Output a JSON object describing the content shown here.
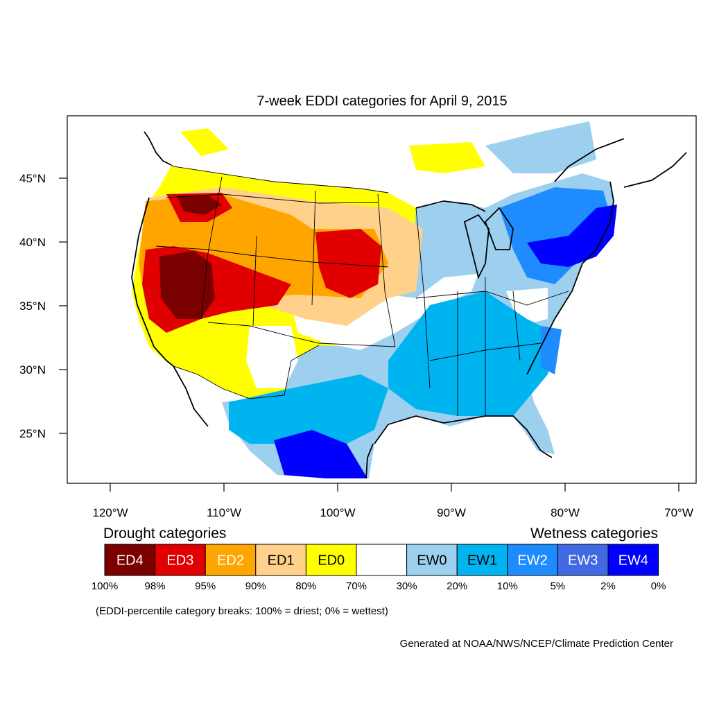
{
  "title": "7-week EDDI categories for April 9, 2015",
  "map": {
    "lon_ticks": [
      "120°W",
      "110°W",
      "100°W",
      "90°W",
      "80°W",
      "70°W"
    ],
    "lat_ticks": [
      "45°N",
      "40°N",
      "35°N",
      "30°N",
      "25°N"
    ]
  },
  "legend": {
    "drought_heading": "Drought categories",
    "wetness_heading": "Wetness categories",
    "categories": [
      {
        "label": "ED4",
        "color": "#7a0000",
        "text_color": "#ffffff"
      },
      {
        "label": "ED3",
        "color": "#e00000",
        "text_color": "#ffffff"
      },
      {
        "label": "ED2",
        "color": "#ffa500",
        "text_color": "#ffffff"
      },
      {
        "label": "ED1",
        "color": "#ffd18a",
        "text_color": "#000000"
      },
      {
        "label": "ED0",
        "color": "#ffff00",
        "text_color": "#000000"
      },
      {
        "label": "",
        "color": "#ffffff",
        "text_color": "#000000"
      },
      {
        "label": "EW0",
        "color": "#9dcfef",
        "text_color": "#000000"
      },
      {
        "label": "EW1",
        "color": "#00b4f0",
        "text_color": "#000000"
      },
      {
        "label": "EW2",
        "color": "#1e8cff",
        "text_color": "#ffffff"
      },
      {
        "label": "EW3",
        "color": "#4169e1",
        "text_color": "#ffffff"
      },
      {
        "label": "EW4",
        "color": "#0000ff",
        "text_color": "#ffffff"
      }
    ],
    "percent_breaks": [
      "100%",
      "98%",
      "95%",
      "90%",
      "80%",
      "70%",
      "30%",
      "20%",
      "10%",
      "5%",
      "2%",
      "0%"
    ]
  },
  "note": "(EDDI-percentile category breaks: 100% = driest; 0% = wettest)",
  "credit": "Generated at NOAA/NWS/NCEP/Climate Prediction Center"
}
